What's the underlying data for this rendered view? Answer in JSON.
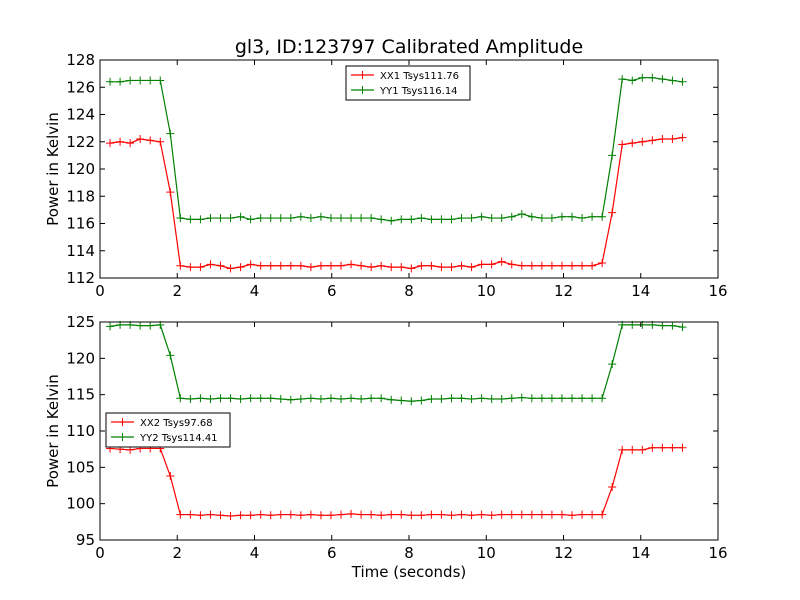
{
  "chart_data": {
    "type": "line",
    "title": "gl3, ID:123797 Calibrated Amplitude",
    "colors": {
      "xx": "#ff0000",
      "yy": "#008000"
    },
    "marker": "plus",
    "panels": [
      {
        "ylabel": "Power in Kelvin",
        "xlabel": "",
        "xlim": [
          0,
          16
        ],
        "ylim": [
          112,
          128
        ],
        "xticks": [
          "0",
          "2",
          "4",
          "6",
          "8",
          "10",
          "12",
          "14",
          "16"
        ],
        "yticks": [
          "112",
          "114",
          "116",
          "118",
          "120",
          "122",
          "124",
          "126",
          "128"
        ],
        "legend_position": "upper-center",
        "x": [
          0.26,
          0.52,
          0.78,
          1.04,
          1.3,
          1.56,
          1.82,
          2.08,
          2.34,
          2.6,
          2.86,
          3.12,
          3.38,
          3.64,
          3.9,
          4.16,
          4.42,
          4.68,
          4.94,
          5.2,
          5.46,
          5.72,
          5.98,
          6.24,
          6.5,
          6.76,
          7.02,
          7.28,
          7.54,
          7.8,
          8.06,
          8.32,
          8.58,
          8.84,
          9.1,
          9.36,
          9.62,
          9.88,
          10.14,
          10.4,
          10.66,
          10.92,
          11.18,
          11.44,
          11.7,
          11.96,
          12.22,
          12.48,
          12.74,
          13.0,
          13.26,
          13.52,
          13.78,
          14.04,
          14.3,
          14.56,
          14.82,
          15.08
        ],
        "series": [
          {
            "name": "XX1 Tsys111.76",
            "color_key": "xx",
            "values": [
              121.9,
              122.0,
              121.9,
              122.2,
              122.1,
              122.0,
              118.3,
              112.9,
              112.8,
              112.8,
              113.0,
              112.9,
              112.7,
              112.8,
              113.0,
              112.9,
              112.9,
              112.9,
              112.9,
              112.9,
              112.8,
              112.9,
              112.9,
              112.9,
              113.0,
              112.9,
              112.8,
              112.9,
              112.8,
              112.8,
              112.7,
              112.9,
              112.9,
              112.8,
              112.8,
              112.9,
              112.8,
              113.0,
              113.0,
              113.2,
              113.0,
              112.9,
              112.9,
              112.9,
              112.9,
              112.9,
              112.9,
              112.9,
              112.9,
              113.1,
              116.8,
              121.8,
              121.9,
              122.0,
              122.1,
              122.2,
              122.2,
              122.3
            ]
          },
          {
            "name": "YY1 Tsys116.14",
            "color_key": "yy",
            "values": [
              126.4,
              126.4,
              126.5,
              126.5,
              126.5,
              126.5,
              122.6,
              116.4,
              116.3,
              116.3,
              116.4,
              116.4,
              116.4,
              116.5,
              116.3,
              116.4,
              116.4,
              116.4,
              116.4,
              116.5,
              116.4,
              116.5,
              116.4,
              116.4,
              116.4,
              116.4,
              116.4,
              116.3,
              116.2,
              116.3,
              116.3,
              116.4,
              116.3,
              116.3,
              116.3,
              116.4,
              116.4,
              116.5,
              116.4,
              116.4,
              116.5,
              116.7,
              116.5,
              116.4,
              116.4,
              116.5,
              116.5,
              116.4,
              116.5,
              116.5,
              121.0,
              126.6,
              126.5,
              126.7,
              126.7,
              126.6,
              126.5,
              126.4
            ]
          }
        ]
      },
      {
        "ylabel": "Power in Kelvin",
        "xlabel": "Time (seconds)",
        "xlim": [
          0,
          16
        ],
        "ylim": [
          95,
          125
        ],
        "xticks": [
          "0",
          "2",
          "4",
          "6",
          "8",
          "10",
          "12",
          "14",
          "16"
        ],
        "yticks": [
          "95",
          "100",
          "105",
          "110",
          "115",
          "120",
          "125"
        ],
        "legend_position": "center-left",
        "x": [
          0.26,
          0.52,
          0.78,
          1.04,
          1.3,
          1.56,
          1.82,
          2.08,
          2.34,
          2.6,
          2.86,
          3.12,
          3.38,
          3.64,
          3.9,
          4.16,
          4.42,
          4.68,
          4.94,
          5.2,
          5.46,
          5.72,
          5.98,
          6.24,
          6.5,
          6.76,
          7.02,
          7.28,
          7.54,
          7.8,
          8.06,
          8.32,
          8.58,
          8.84,
          9.1,
          9.36,
          9.62,
          9.88,
          10.14,
          10.4,
          10.66,
          10.92,
          11.18,
          11.44,
          11.7,
          11.96,
          12.22,
          12.48,
          12.74,
          13.0,
          13.26,
          13.52,
          13.78,
          14.04,
          14.3,
          14.56,
          14.82,
          15.08
        ],
        "series": [
          {
            "name": "XX2 Tsys97.68",
            "color_key": "xx",
            "values": [
              107.6,
              107.5,
              107.4,
              107.6,
              107.6,
              107.6,
              103.8,
              98.5,
              98.5,
              98.4,
              98.5,
              98.4,
              98.3,
              98.4,
              98.4,
              98.5,
              98.4,
              98.5,
              98.5,
              98.4,
              98.5,
              98.4,
              98.4,
              98.5,
              98.6,
              98.5,
              98.5,
              98.4,
              98.5,
              98.5,
              98.4,
              98.4,
              98.5,
              98.5,
              98.4,
              98.5,
              98.4,
              98.5,
              98.4,
              98.5,
              98.5,
              98.5,
              98.5,
              98.5,
              98.5,
              98.5,
              98.4,
              98.5,
              98.5,
              98.5,
              102.3,
              107.4,
              107.4,
              107.4,
              107.7,
              107.7,
              107.7,
              107.7
            ]
          },
          {
            "name": "YY2 Tsys114.41",
            "color_key": "yy",
            "values": [
              124.4,
              124.6,
              124.6,
              124.5,
              124.5,
              124.6,
              120.4,
              114.5,
              114.4,
              114.5,
              114.4,
              114.5,
              114.5,
              114.4,
              114.5,
              114.5,
              114.5,
              114.4,
              114.3,
              114.4,
              114.5,
              114.4,
              114.5,
              114.4,
              114.5,
              114.4,
              114.5,
              114.5,
              114.3,
              114.2,
              114.1,
              114.2,
              114.4,
              114.4,
              114.5,
              114.5,
              114.4,
              114.5,
              114.4,
              114.4,
              114.5,
              114.6,
              114.5,
              114.5,
              114.5,
              114.5,
              114.5,
              114.5,
              114.5,
              114.5,
              119.2,
              124.6,
              124.6,
              124.6,
              124.6,
              124.5,
              124.5,
              124.3
            ]
          }
        ]
      }
    ]
  }
}
